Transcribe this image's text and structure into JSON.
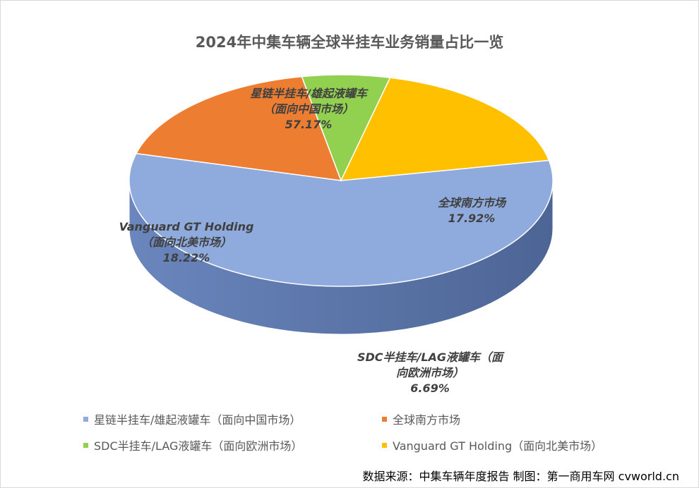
{
  "chart_data": {
    "type": "pie",
    "title": "2024年中集车辆全球半挂车业务销量占比一览",
    "slices": [
      {
        "label_line1": "星链半挂车/雄起液罐车",
        "label_line2": "（面向中国市场）",
        "value_label": "57.17%",
        "value": 57.17,
        "color": "#8faadc",
        "side_color": "#5f7bb0",
        "legend": "星链半挂车/雄起液罐车（面向中国市场）"
      },
      {
        "label_line1": "全球南方市场",
        "label_line2": "",
        "value_label": "17.92%",
        "value": 17.92,
        "color": "#ed7d31",
        "side_color": "#7a3c12",
        "legend": "全球南方市场"
      },
      {
        "label_line1": "SDC半挂车/LAG液罐车（面",
        "label_line2": "向欧洲市场）",
        "value_label": "6.69%",
        "value": 6.69,
        "color": "#92d050",
        "side_color": "#466b2a",
        "legend": "SDC半挂车/LAG液罐车（面向欧洲市场）"
      },
      {
        "label_line1": "Vanguard GT Holding",
        "label_line2": "（面向北美市场）",
        "value_label": "18.22%",
        "value": 18.22,
        "color": "#ffc000",
        "side_color": "#a07a00",
        "legend": "Vanguard GT Holding（面向北美市场）"
      }
    ],
    "legend_position": "bottom"
  },
  "source": "数据来源：中集车辆年度报告  制图：第一商用车网 cvworld.cn"
}
